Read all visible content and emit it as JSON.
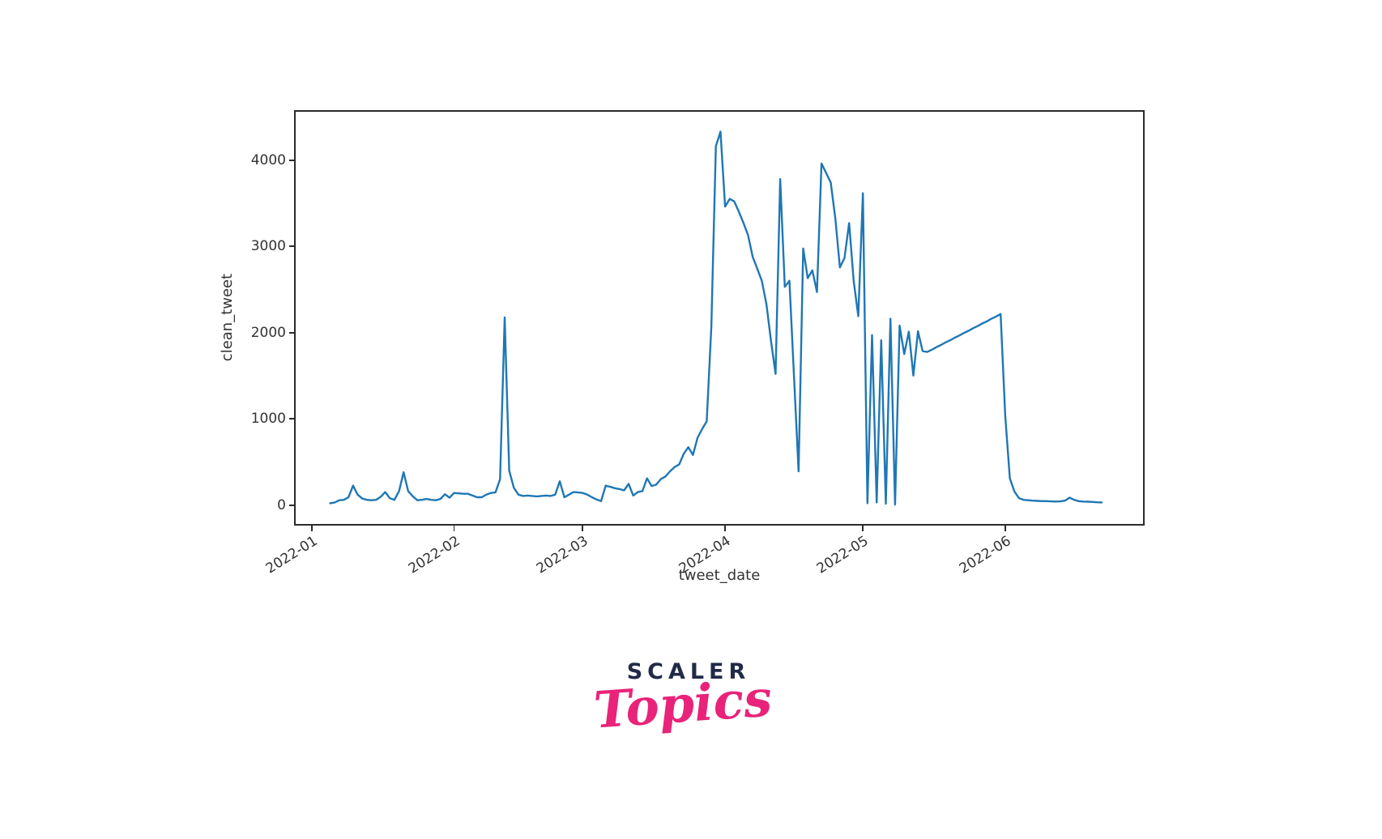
{
  "page": {
    "background": "#ffffff"
  },
  "chart_data": {
    "type": "line",
    "title": "",
    "xlabel": "tweet_date",
    "ylabel": "clean_tweet",
    "legend": "none",
    "grid": false,
    "line_color": "#1f77b4",
    "axis_color": "#2b2b2b",
    "tick_text_color": "#333333",
    "x_tick_labels": [
      "2022-01",
      "2022-02",
      "2022-03",
      "2022-04",
      "2022-05",
      "2022-06"
    ],
    "x_tick_day_offsets": [
      0,
      31,
      59,
      90,
      120,
      151
    ],
    "y_ticks": [
      0,
      1000,
      2000,
      3000,
      4000
    ],
    "xlim_day_offsets": [
      -3.5,
      181
    ],
    "ylim": [
      -220,
      4560
    ],
    "series": {
      "name": "clean_tweet",
      "start_date": "2022-01-05",
      "start_day_offset": 4,
      "frequency": "daily",
      "values": [
        20,
        30,
        55,
        60,
        90,
        225,
        120,
        75,
        60,
        55,
        60,
        95,
        150,
        80,
        60,
        160,
        380,
        160,
        100,
        55,
        60,
        70,
        60,
        55,
        70,
        125,
        85,
        140,
        135,
        130,
        130,
        110,
        90,
        90,
        120,
        140,
        145,
        300,
        2175,
        400,
        200,
        120,
        105,
        110,
        105,
        100,
        105,
        110,
        105,
        120,
        275,
        90,
        120,
        150,
        145,
        140,
        120,
        90,
        65,
        45,
        225,
        210,
        195,
        185,
        170,
        245,
        110,
        150,
        160,
        310,
        220,
        235,
        300,
        330,
        390,
        440,
        470,
        595,
        670,
        580,
        780,
        880,
        970,
        2065,
        4160,
        4330,
        3460,
        3550,
        3520,
        3400,
        3270,
        3130,
        2880,
        2740,
        2600,
        2330,
        1900,
        1520,
        3780,
        2530,
        2600,
        1500,
        390,
        2975,
        2630,
        2720,
        2470,
        3960,
        3850,
        3740,
        3320,
        2755,
        2865,
        3270,
        2600,
        2190,
        3615,
        20,
        1970,
        30,
        1910,
        15,
        2160,
        5,
        2080,
        1750,
        2010,
        1500,
        2015,
        1785,
        1775,
        1800,
        1830,
        1855,
        1885,
        1910,
        1940,
        1965,
        1995,
        2020,
        2050,
        2075,
        2105,
        2130,
        2160,
        2185,
        2215,
        1035,
        310,
        155,
        80,
        60,
        55,
        50,
        48,
        45,
        45,
        42,
        40,
        42,
        50,
        85,
        60,
        45,
        40,
        38,
        35,
        32,
        30
      ]
    },
    "annotations": {
      "notable_points": [
        {
          "date": "2022-02-12",
          "value": 2175
        },
        {
          "date": "2022-03-31",
          "value": 4330
        },
        {
          "date": "2022-04-13",
          "value": 3780
        },
        {
          "date": "2022-04-17",
          "value": 390
        },
        {
          "date": "2022-04-22",
          "value": 3960
        },
        {
          "date": "2022-05-01",
          "value": 3615
        },
        {
          "date": "2022-05-31",
          "value": 2215
        }
      ]
    }
  },
  "logo": {
    "brand": "SCALER",
    "sub": "Topics",
    "brand_color": "#212a47",
    "sub_color": "#e92379"
  }
}
